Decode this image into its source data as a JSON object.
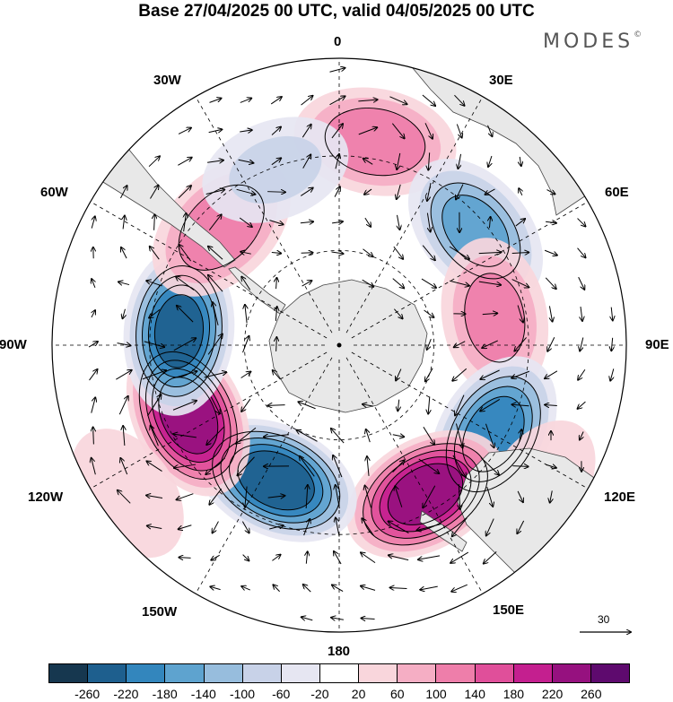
{
  "title": "Base 27/04/2025 00 UTC, valid 04/05/2025 00 UTC",
  "brand": "MODES",
  "brand_mark": "©",
  "longitude_labels": [
    "0",
    "30E",
    "60E",
    "90E",
    "120E",
    "150E",
    "180",
    "150W",
    "120W",
    "90W",
    "60W",
    "30W"
  ],
  "reference_vector": "30",
  "colorbar": {
    "ticks": [
      "-260",
      "-220",
      "-180",
      "-140",
      "-100",
      "-60",
      "-20",
      "20",
      "60",
      "100",
      "140",
      "180",
      "220",
      "260"
    ],
    "colors": [
      "#16374f",
      "#1e5f8e",
      "#3386bd",
      "#5ea3cf",
      "#97bddd",
      "#c8d2e8",
      "#e6e6f2",
      "#ffffff",
      "#f9d6dc",
      "#f5aec4",
      "#ee7eaa",
      "#e04f9a",
      "#c41f8f",
      "#96117f",
      "#5e0a6e"
    ]
  },
  "anomaly_centers": [
    {
      "lon": 10,
      "r": 0.72,
      "value": 130
    },
    {
      "lon": 50,
      "r": 0.62,
      "value": -150
    },
    {
      "lon": 80,
      "r": 0.55,
      "value": 110
    },
    {
      "lon": 120,
      "r": 0.62,
      "value": -200
    },
    {
      "lon": 150,
      "r": 0.6,
      "value": 250
    },
    {
      "lon": -155,
      "r": 0.52,
      "value": -250
    },
    {
      "lon": -115,
      "r": 0.58,
      "value": 250
    },
    {
      "lon": -85,
      "r": 0.56,
      "value": -230
    },
    {
      "lon": -45,
      "r": 0.58,
      "value": 130
    },
    {
      "lon": -20,
      "r": 0.65,
      "value": -60
    },
    {
      "lon": 125,
      "r": 0.85,
      "value": 40
    },
    {
      "lon": -125,
      "r": 0.9,
      "value": 40
    }
  ]
}
